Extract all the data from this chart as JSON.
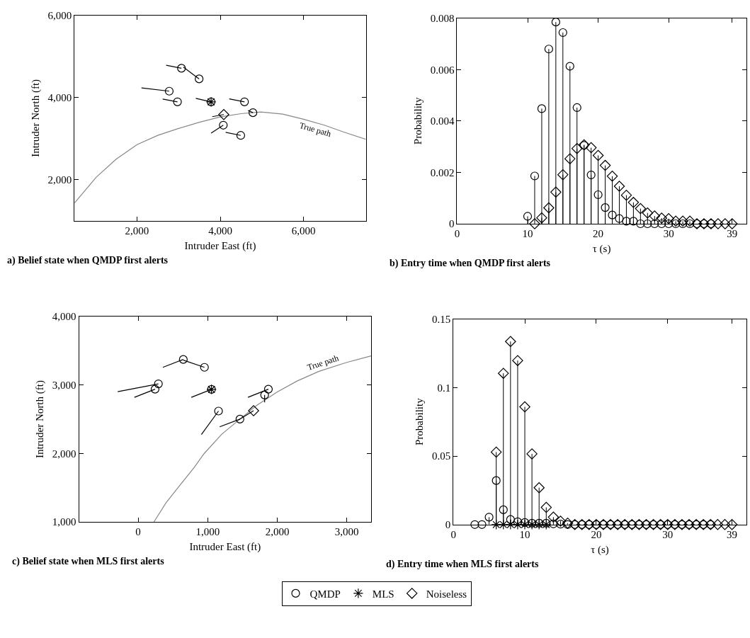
{
  "chart_data": [
    {
      "type": "scatter",
      "title": "a) Belief state when QMDP first alerts",
      "xlabel": "Intruder East (ft)",
      "ylabel": "Intruder North (ft)",
      "xlim": [
        500,
        7500
      ],
      "ylim": [
        1000,
        6000
      ],
      "xticks": [
        {
          "value": 2000,
          "label": "2,000"
        },
        {
          "value": 4000,
          "label": "4,000"
        },
        {
          "value": 6000,
          "label": "6,000"
        }
      ],
      "yticks": [
        {
          "value": 2000,
          "label": "2,000"
        },
        {
          "value": 4000,
          "label": "4,000"
        },
        {
          "value": 6000,
          "label": "6,000"
        }
      ],
      "legend": "bottom",
      "annotations": [
        {
          "text": "True path",
          "x": 6330,
          "y": 3380
        }
      ],
      "series": [
        {
          "type": "line",
          "color": "#888888",
          "x": [
            500,
            1023,
            1500,
            2000,
            2500,
            3000,
            3500,
            4000,
            4500,
            4977,
            5500,
            6000,
            6500,
            6955,
            7500
          ],
          "values": [
            1429,
            2062,
            2500,
            2853,
            3080,
            3249,
            3400,
            3531,
            3610,
            3650,
            3600,
            3475,
            3330,
            3164,
            2983
          ]
        },
        {
          "type": "line",
          "color": "#000000",
          "x": [
            3068,
            2700
          ],
          "values": [
            4718,
            4791
          ]
        },
        {
          "type": "line",
          "color": "#000000",
          "x": [
            3492,
            3113
          ],
          "values": [
            4458,
            4746
          ]
        },
        {
          "type": "line",
          "color": "#000000",
          "x": [
            2774,
            2107
          ],
          "values": [
            4158,
            4237
          ]
        },
        {
          "type": "line",
          "color": "#000000",
          "x": [
            2972,
            2616
          ],
          "values": [
            3898,
            3966
          ]
        },
        {
          "type": "line",
          "color": "#000000",
          "x": [
            4582,
            4215
          ],
          "values": [
            3898,
            3972
          ]
        },
        {
          "type": "line",
          "color": "#000000",
          "x": [
            4785,
            4667
          ],
          "values": [
            3633,
            3689
          ]
        },
        {
          "type": "line",
          "color": "#000000",
          "x": [
            4073,
            3780
          ],
          "values": [
            3328,
            3136
          ]
        },
        {
          "type": "line",
          "color": "#000000",
          "x": [
            4492,
            4130
          ],
          "values": [
            3079,
            3153
          ]
        },
        {
          "type": "line",
          "color": "#000000",
          "x": [
            3780,
            3412
          ],
          "values": [
            3898,
            3983
          ]
        },
        {
          "type": "line",
          "color": "#000000",
          "x": [
            4085,
            3808
          ],
          "values": [
            3588,
            3537
          ]
        },
        {
          "name": "QMDP",
          "type": "scatter",
          "marker": "circle",
          "color": "#000000",
          "x": [
            3068,
            3492,
            2774,
            2972,
            4582,
            4785,
            4073,
            4492,
            3780
          ],
          "values": [
            4718,
            4458,
            4158,
            3898,
            3898,
            3633,
            3328,
            3079,
            3898
          ]
        },
        {
          "name": "MLS",
          "type": "scatter",
          "marker": "cross",
          "color": "#000000",
          "x": [
            3780
          ],
          "values": [
            3898
          ]
        },
        {
          "name": "Noiseless",
          "type": "scatter",
          "marker": "diamond",
          "color": "#000000",
          "x": [
            4085
          ],
          "values": [
            3588
          ]
        }
      ]
    },
    {
      "type": "lollipop",
      "title": "b) Entry time when QMDP first alerts",
      "xlabel": "τ (s)",
      "ylabel": "Probability",
      "xlim": [
        0,
        41
      ],
      "ylim": [
        0,
        0.008
      ],
      "xticks": [
        0,
        10,
        20,
        30,
        39
      ],
      "yticks": [
        0,
        0.002,
        0.004,
        0.006,
        0.008
      ],
      "legend": "bottom",
      "series": [
        {
          "name": "QMDP",
          "marker": "circle",
          "color": "#000000",
          "x": [
            10,
            11,
            12,
            13,
            14,
            15,
            16,
            17,
            18,
            19,
            20,
            21,
            22,
            23,
            24,
            25,
            26,
            27,
            28,
            29,
            30,
            31,
            32,
            33,
            34,
            35,
            36
          ],
          "values": [
            0.00029,
            0.00186,
            0.00448,
            0.0068,
            0.00785,
            0.00744,
            0.00613,
            0.00452,
            0.00305,
            0.0019,
            0.00113,
            0.00063,
            0.00034,
            0.0002,
            0.0001,
            0.0001,
            0,
            0,
            0,
            0,
            0,
            0,
            0,
            0,
            0,
            0,
            0
          ]
        },
        {
          "name": "Noiseless",
          "marker": "diamond",
          "color": "#000000",
          "x": [
            11,
            12,
            13,
            14,
            15,
            16,
            17,
            18,
            19,
            20,
            21,
            22,
            23,
            24,
            25,
            26,
            27,
            28,
            29,
            30,
            31,
            32,
            33,
            34,
            35,
            36,
            37,
            38,
            39
          ],
          "values": [
            0,
            0.00023,
            0.00062,
            0.00123,
            0.00191,
            0.00253,
            0.00293,
            0.00307,
            0.00296,
            0.00266,
            0.00227,
            0.00185,
            0.00146,
            0.00111,
            0.00083,
            0.00059,
            0.00042,
            0.0003,
            0.00022,
            0.0002,
            0.0001,
            0.0001,
            0.0001,
            0,
            0,
            0,
            0,
            0,
            0
          ]
        }
      ]
    },
    {
      "type": "scatter",
      "title": "c) Belief state when MLS first alerts",
      "xlabel": "Intruder East (ft)",
      "ylabel": "Intruder North (ft)",
      "xlim": [
        -850,
        3350
      ],
      "ylim": [
        1000,
        4000
      ],
      "xticks": [
        0,
        {
          "value": 1000,
          "label": "1,000"
        },
        {
          "value": 2000,
          "label": "2,000"
        },
        {
          "value": 3000,
          "label": "3,000"
        }
      ],
      "yticks": [
        {
          "value": 1000,
          "label": "1,000"
        },
        {
          "value": 2000,
          "label": "2,000"
        },
        {
          "value": 3000,
          "label": "3,000"
        },
        {
          "value": 4000,
          "label": "4,000"
        }
      ],
      "legend": "bottom",
      "annotations": [
        {
          "text": "True path",
          "x": 2690,
          "y": 3230
        }
      ],
      "series": [
        {
          "type": "line",
          "color": "#888888",
          "x": [
            226,
            400,
            595,
            800,
            949,
            1200,
            1463,
            1700,
            2000,
            2284,
            2600,
            3000,
            3348
          ],
          "values": [
            1000,
            1280,
            1532,
            1790,
            2000,
            2280,
            2502,
            2700,
            2900,
            3058,
            3200,
            3330,
            3424
          ]
        },
        {
          "type": "line",
          "color": "#000000",
          "x": [
            649,
            355
          ],
          "values": [
            3373,
            3258
          ]
        },
        {
          "type": "line",
          "color": "#000000",
          "x": [
            953,
            649
          ],
          "values": [
            3258,
            3363
          ]
        },
        {
          "type": "line",
          "color": "#000000",
          "x": [
            291,
            -294
          ],
          "values": [
            3017,
            2902
          ]
        },
        {
          "type": "line",
          "color": "#000000",
          "x": [
            243,
            -54
          ],
          "values": [
            2939,
            2820
          ]
        },
        {
          "type": "line",
          "color": "#000000",
          "x": [
            1054,
            764
          ],
          "values": [
            2936,
            2820
          ]
        },
        {
          "type": "line",
          "color": "#000000",
          "x": [
            1155,
            909
          ],
          "values": [
            2620,
            2278
          ]
        },
        {
          "type": "line",
          "color": "#000000",
          "x": [
            1463,
            1172
          ],
          "values": [
            2502,
            2390
          ]
        },
        {
          "type": "line",
          "color": "#000000",
          "x": [
            1872,
            1578
          ],
          "values": [
            2939,
            2820
          ]
        },
        {
          "type": "line",
          "color": "#000000",
          "x": [
            1818,
            1818
          ],
          "values": [
            2854,
            2746
          ]
        },
        {
          "type": "line",
          "color": "#000000",
          "x": [
            1659,
            1456
          ],
          "values": [
            2624,
            2498
          ]
        },
        {
          "name": "QMDP",
          "type": "scatter",
          "marker": "circle",
          "color": "#000000",
          "x": [
            649,
            953,
            291,
            243,
            1054,
            1155,
            1463,
            1872,
            1818
          ],
          "values": [
            3373,
            3258,
            3017,
            2939,
            2936,
            2620,
            2502,
            2939,
            2854
          ]
        },
        {
          "name": "MLS",
          "type": "scatter",
          "marker": "cross",
          "color": "#000000",
          "x": [
            1054
          ],
          "values": [
            2936
          ]
        },
        {
          "name": "Noiseless",
          "type": "scatter",
          "marker": "diamond",
          "color": "#000000",
          "x": [
            1659
          ],
          "values": [
            2624
          ]
        }
      ]
    },
    {
      "type": "lollipop",
      "title": "d) Entry time when MLS first alerts",
      "xlabel": "τ (s)",
      "ylabel": "Probability",
      "xlim": [
        0,
        41
      ],
      "ylim": [
        0,
        0.15
      ],
      "xticks": [
        0,
        10,
        20,
        30,
        39
      ],
      "yticks": [
        0,
        0.05,
        0.1,
        0.15
      ],
      "legend": "bottom",
      "series": [
        {
          "name": "QMDP",
          "marker": "circle",
          "color": "#000000",
          "x": [
            3,
            4,
            5,
            6,
            7,
            8,
            9,
            10,
            11,
            12,
            13,
            14,
            15,
            16,
            17,
            18,
            19,
            20,
            21,
            22,
            23,
            24,
            25,
            26,
            27,
            28,
            29,
            30,
            31,
            32,
            33,
            34,
            35,
            36
          ],
          "values": [
            0,
            0,
            0.0054,
            0.0321,
            0.0108,
            0.0037,
            0.002,
            0.0015,
            0.001,
            0.001,
            0.001,
            0.0005,
            0.0003,
            0,
            0,
            0,
            0,
            0,
            0,
            0,
            0,
            0,
            0,
            0,
            0,
            0,
            0,
            0,
            0,
            0,
            0,
            0,
            0,
            0
          ]
        },
        {
          "name": "MLS",
          "marker": "cross",
          "color": "#000000",
          "x": [
            6,
            7,
            8,
            9,
            10,
            11,
            12,
            13
          ],
          "values": [
            0,
            0,
            0,
            0,
            0,
            0,
            0,
            0
          ]
        },
        {
          "name": "Noiseless",
          "marker": "diamond",
          "color": "#000000",
          "x": [
            6,
            7,
            8,
            9,
            10,
            11,
            12,
            13,
            14,
            15,
            16,
            17,
            18,
            19,
            20,
            21,
            22,
            23,
            24,
            25,
            26,
            27,
            28,
            29,
            30,
            31,
            32,
            33,
            34,
            35,
            36,
            37,
            38,
            39
          ],
          "values": [
            0.0529,
            0.1104,
            0.1336,
            0.1197,
            0.0859,
            0.0516,
            0.0269,
            0.0125,
            0.0054,
            0.0025,
            0.001,
            0,
            0,
            0,
            0,
            0,
            0,
            0,
            0,
            0,
            0,
            0,
            0,
            0,
            0,
            0,
            0,
            0,
            0,
            0,
            0,
            0,
            0,
            0
          ]
        }
      ]
    }
  ]
}
